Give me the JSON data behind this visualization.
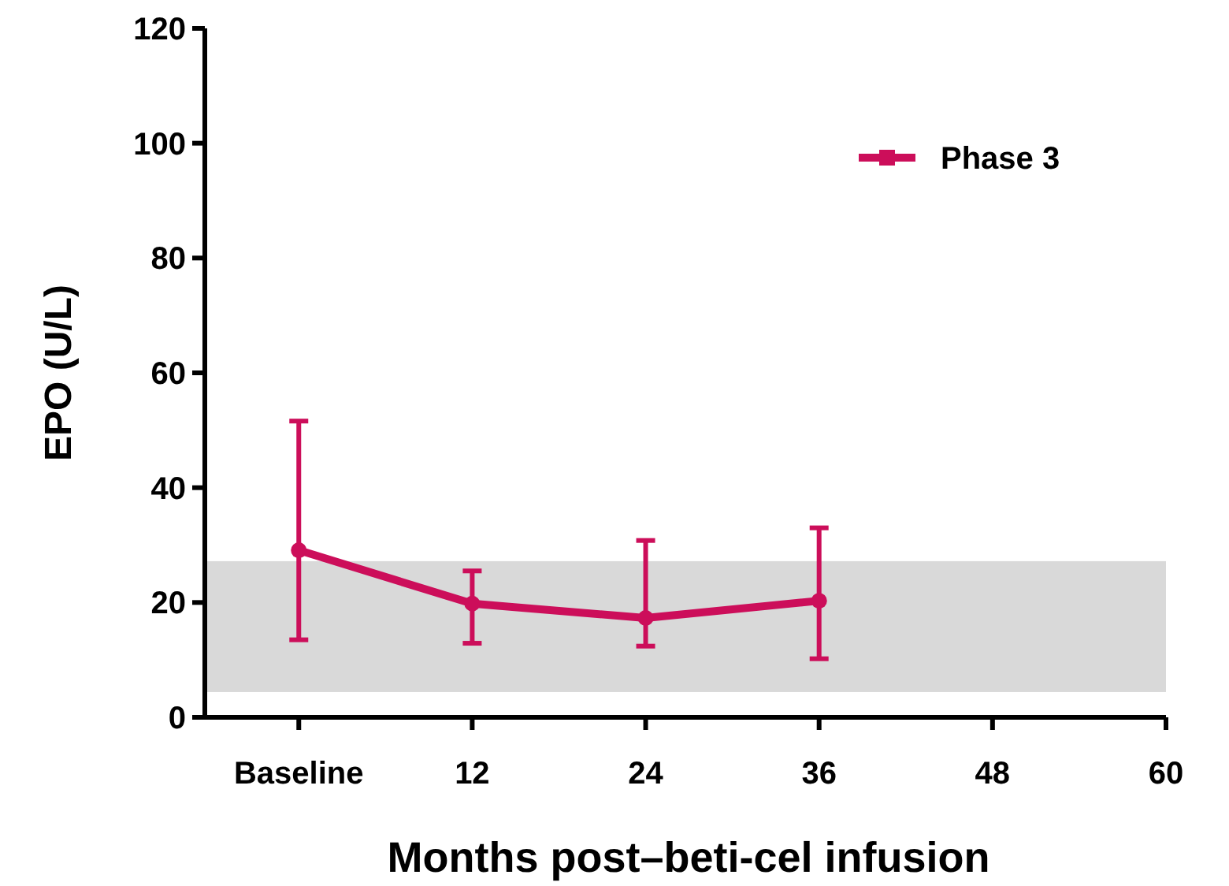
{
  "chart_data": {
    "type": "line",
    "xlabel": "Months post–beti-cel infusion",
    "ylabel": "EPO (U/L)",
    "x": [
      0,
      12,
      24,
      36
    ],
    "series": [
      {
        "name": "Phase 3",
        "color": "#cc0e5a",
        "values": [
          29.1,
          19.8,
          17.3,
          20.3
        ],
        "errors": [
          [
            13.5,
            51.6
          ],
          [
            12.9,
            25.5
          ],
          [
            12.4,
            30.8
          ],
          [
            10.2,
            33
          ]
        ]
      }
    ],
    "xlim": [
      -6.5,
      60
    ],
    "xticks": [
      {
        "value": 0,
        "label": "Baseline"
      },
      12,
      24,
      36,
      48,
      60
    ],
    "ylim": [
      0,
      120
    ],
    "yticks": [
      0,
      20,
      40,
      60,
      80,
      100,
      120
    ],
    "bands": [
      {
        "axis": "y",
        "from": 4.4,
        "to": 27.2,
        "color": "#d9d9d9"
      }
    ],
    "legend": "top right",
    "marker": "circle",
    "line_style": "solid",
    "grid": false
  }
}
